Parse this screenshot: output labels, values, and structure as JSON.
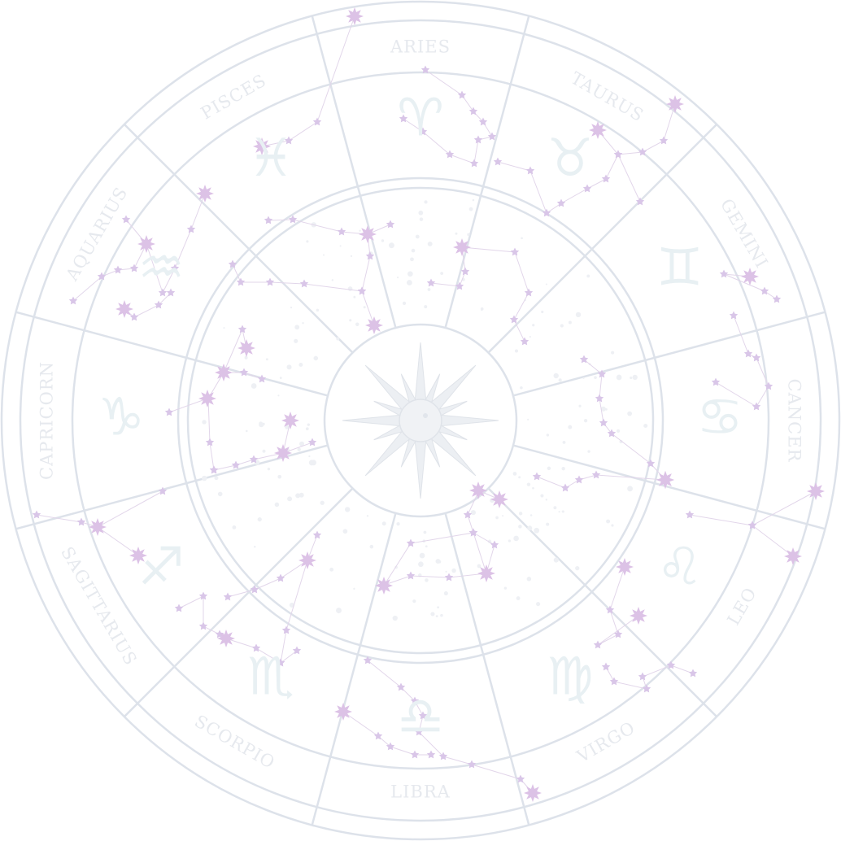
{
  "chart": {
    "signs": [
      {
        "name": "ARIES",
        "glyph": "♈"
      },
      {
        "name": "TAURUS",
        "glyph": "♉"
      },
      {
        "name": "GEMINI",
        "glyph": "♊"
      },
      {
        "name": "CANCER",
        "glyph": "♋"
      },
      {
        "name": "LEO",
        "glyph": "♌"
      },
      {
        "name": "VIRGO",
        "glyph": "♍"
      },
      {
        "name": "LIBRA",
        "glyph": "♎"
      },
      {
        "name": "SCORPIO",
        "glyph": "♏"
      },
      {
        "name": "SAGITTARIUS",
        "glyph": "♐"
      },
      {
        "name": "CAPRICORN",
        "glyph": "♑"
      },
      {
        "name": "AQUARIUS",
        "glyph": "♒"
      },
      {
        "name": "PISCES",
        "glyph": "♓"
      }
    ],
    "center_emblem": "sun-and-moon-emblem-icon",
    "colors": {
      "lines": "#dde2ea",
      "stars": "#d9c6e8",
      "labels": "#e6e9ee",
      "glyphs": "#e8f0f3"
    }
  }
}
